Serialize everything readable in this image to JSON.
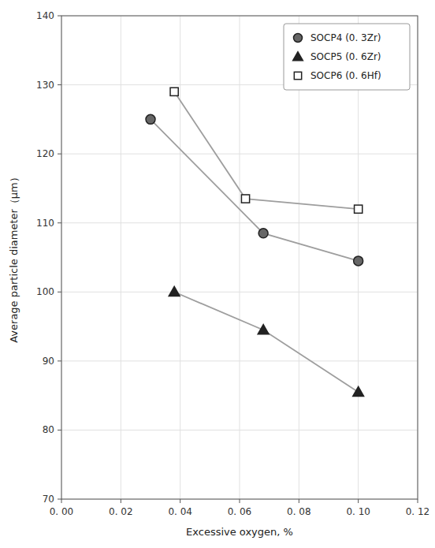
{
  "chart_data": {
    "type": "line",
    "xlabel": "Excessive oxygen, %",
    "ylabel": "Average particle diameter（μm）",
    "series": [
      {
        "name": "SOCP4 (0. 3Zr)",
        "color": "#666666",
        "marker": "circle",
        "x": [
          0.03,
          0.068,
          0.1
        ],
        "values": [
          125.0,
          108.5,
          104.5
        ]
      },
      {
        "name": "SOCP5 (0. 6Zr)",
        "color": "#222222",
        "marker": "triangle",
        "x": [
          0.038,
          0.068,
          0.1
        ],
        "values": [
          100.0,
          94.5,
          85.5
        ]
      },
      {
        "name": "SOCP6 (0. 6Hf)",
        "color": "#ffffff",
        "marker": "square",
        "x": [
          0.038,
          0.062,
          0.1
        ],
        "values": [
          129.0,
          113.5,
          112.0
        ]
      }
    ],
    "xlim": [
      0.0,
      0.12
    ],
    "ylim": [
      70,
      140
    ],
    "xticks": [
      {
        "value": 0.0,
        "label": "0. 00"
      },
      {
        "value": 0.02,
        "label": "0. 02"
      },
      {
        "value": 0.04,
        "label": "0. 04"
      },
      {
        "value": 0.06,
        "label": "0. 06"
      },
      {
        "value": 0.08,
        "label": "0. 08"
      },
      {
        "value": 0.1,
        "label": "0. 10"
      },
      {
        "value": 0.12,
        "label": "0. 12"
      }
    ],
    "yticks": [
      70,
      80,
      90,
      100,
      110,
      120,
      130,
      140
    ],
    "grid": true,
    "legend": "upper right"
  }
}
